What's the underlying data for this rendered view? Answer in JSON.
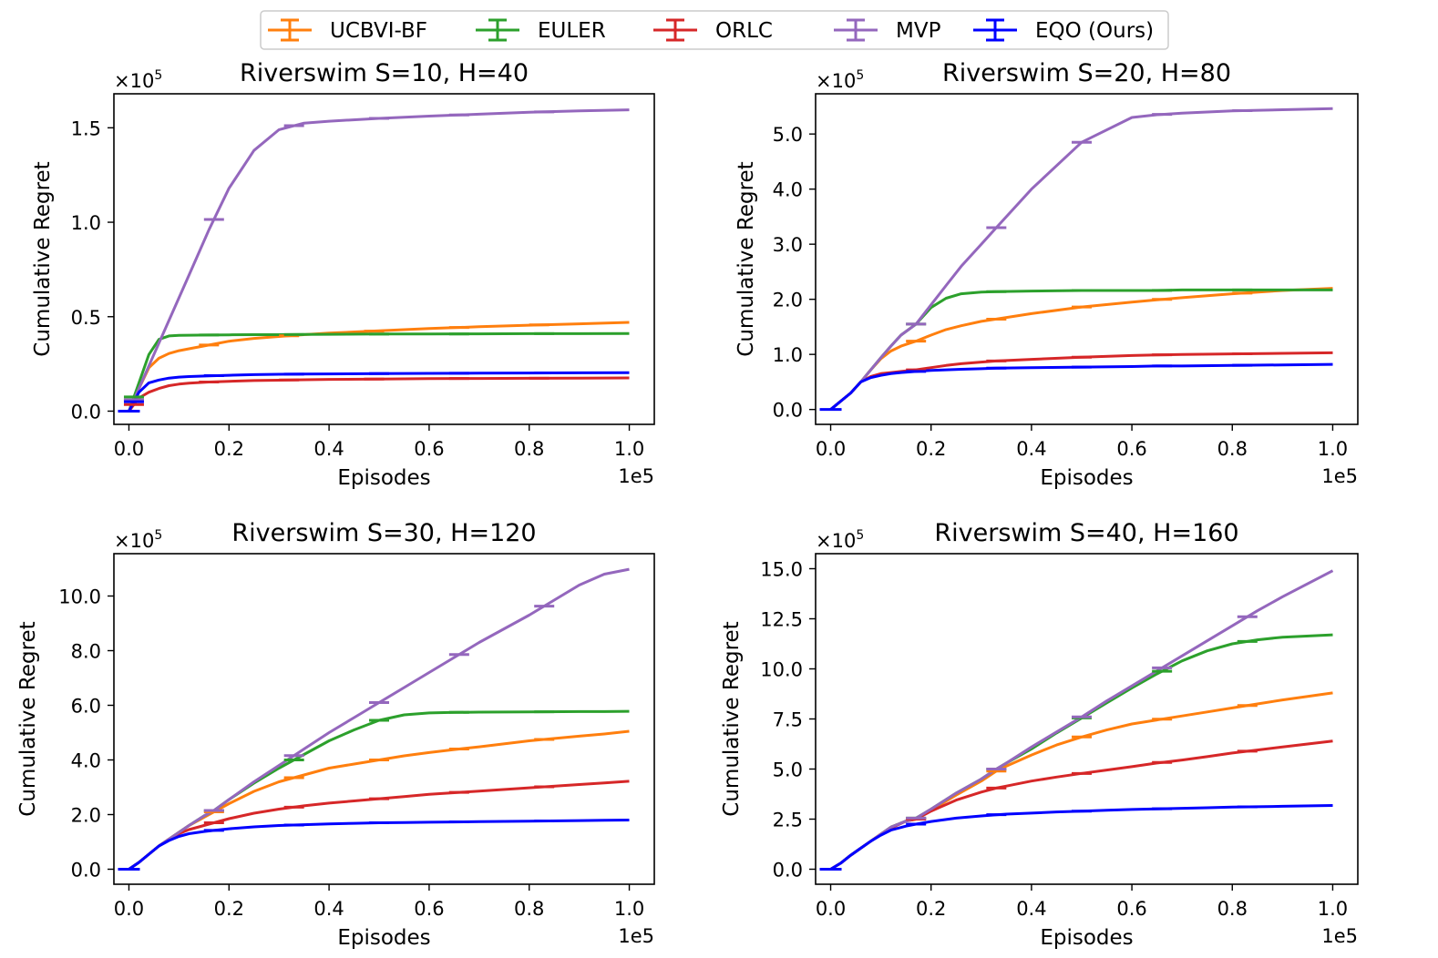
{
  "legend": {
    "entries": [
      {
        "name": "UCBVI-BF",
        "color": "#ff7f0e"
      },
      {
        "name": "EULER",
        "color": "#2ca02c"
      },
      {
        "name": "ORLC",
        "color": "#d62728"
      },
      {
        "name": "MVP",
        "color": "#9467bd"
      },
      {
        "name": "EQO (Ours)",
        "color": "#0000ff"
      }
    ]
  },
  "chart_data": [
    {
      "type": "line",
      "title": "Riverswim S=10, H=40",
      "xlabel": "Episodes",
      "ylabel": "Cumulative Regret",
      "x_offset_label": "1e5",
      "y_multiplier": {
        "base": "×10",
        "exp": "5"
      },
      "xlim": [
        -0.03,
        1.05
      ],
      "ylim": [
        -0.07,
        1.68
      ],
      "xticks": [
        0.0,
        0.2,
        0.4,
        0.6,
        0.8,
        1.0
      ],
      "xtick_labels": [
        "0.0",
        "0.2",
        "0.4",
        "0.6",
        "0.8",
        "1.0"
      ],
      "yticks": [
        0.0,
        0.5,
        1.0,
        1.5
      ],
      "ytick_labels": [
        "0.0",
        "0.5",
        "1.0",
        "1.5"
      ],
      "x": [
        0.0,
        0.02,
        0.04,
        0.06,
        0.08,
        0.1,
        0.12,
        0.16,
        0.2,
        0.25,
        0.3,
        0.35,
        0.4,
        0.5,
        0.6,
        0.7,
        0.8,
        0.9,
        1.0
      ],
      "series": [
        {
          "name": "UCBVI-BF",
          "color": "#ff7f0e",
          "values": [
            0.0,
            0.12,
            0.23,
            0.28,
            0.305,
            0.32,
            0.33,
            0.35,
            0.37,
            0.385,
            0.395,
            0.405,
            0.413,
            0.425,
            0.437,
            0.447,
            0.455,
            0.462,
            0.47
          ],
          "errorbar_x": [
            0.01,
            0.16,
            0.32,
            0.49,
            0.66,
            0.82
          ]
        },
        {
          "name": "EULER",
          "color": "#2ca02c",
          "values": [
            0.0,
            0.15,
            0.3,
            0.38,
            0.398,
            0.401,
            0.402,
            0.403,
            0.404,
            0.405,
            0.405,
            0.406,
            0.407,
            0.408,
            0.408,
            0.409,
            0.41,
            0.41,
            0.411
          ],
          "errorbar_x": [
            0.01,
            0.16,
            0.33,
            0.5,
            0.66,
            0.83
          ]
        },
        {
          "name": "ORLC",
          "color": "#d62728",
          "values": [
            0.0,
            0.07,
            0.1,
            0.12,
            0.135,
            0.143,
            0.148,
            0.154,
            0.158,
            0.162,
            0.164,
            0.166,
            0.168,
            0.17,
            0.172,
            0.173,
            0.174,
            0.175,
            0.176
          ],
          "errorbar_x": [
            0.01,
            0.16,
            0.32,
            0.49,
            0.66,
            0.82
          ]
        },
        {
          "name": "MVP",
          "color": "#9467bd",
          "values": [
            0.0,
            0.12,
            0.24,
            0.36,
            0.48,
            0.6,
            0.72,
            0.96,
            1.18,
            1.38,
            1.49,
            1.525,
            1.535,
            1.55,
            1.562,
            1.572,
            1.582,
            1.59,
            1.595
          ],
          "errorbar_x": [
            0.01,
            0.17,
            0.33,
            0.5,
            0.66,
            0.83
          ]
        },
        {
          "name": "EQO (Ours)",
          "color": "#0000ff",
          "values": [
            0.0,
            0.1,
            0.15,
            0.165,
            0.175,
            0.18,
            0.183,
            0.187,
            0.19,
            0.193,
            0.195,
            0.196,
            0.197,
            0.199,
            0.2,
            0.201,
            0.202,
            0.203,
            0.204
          ],
          "errorbar_x": [
            0.01,
            0.17,
            0.33,
            0.5,
            0.66,
            0.83
          ]
        }
      ]
    },
    {
      "type": "line",
      "title": "Riverswim S=20, H=80",
      "xlabel": "Episodes",
      "ylabel": "Cumulative Regret",
      "x_offset_label": "1e5",
      "y_multiplier": {
        "base": "×10",
        "exp": "5"
      },
      "xlim": [
        -0.03,
        1.05
      ],
      "ylim": [
        -0.27,
        5.73
      ],
      "xticks": [
        0.0,
        0.2,
        0.4,
        0.6,
        0.8,
        1.0
      ],
      "xtick_labels": [
        "0.0",
        "0.2",
        "0.4",
        "0.6",
        "0.8",
        "1.0"
      ],
      "yticks": [
        0.0,
        1.0,
        2.0,
        3.0,
        4.0,
        5.0
      ],
      "ytick_labels": [
        "0.0",
        "1.0",
        "2.0",
        "3.0",
        "4.0",
        "5.0"
      ],
      "x": [
        0.0,
        0.02,
        0.04,
        0.06,
        0.08,
        0.1,
        0.12,
        0.14,
        0.17,
        0.2,
        0.23,
        0.26,
        0.3,
        0.33,
        0.4,
        0.5,
        0.6,
        0.65,
        0.7,
        0.8,
        0.9,
        1.0
      ],
      "series": [
        {
          "name": "UCBVI-BF",
          "color": "#ff7f0e",
          "values": [
            0.0,
            0.15,
            0.3,
            0.5,
            0.72,
            0.92,
            1.06,
            1.15,
            1.24,
            1.35,
            1.45,
            1.52,
            1.6,
            1.64,
            1.74,
            1.86,
            1.95,
            1.99,
            2.03,
            2.1,
            2.16,
            2.2
          ],
          "errorbar_x": [
            0.17,
            0.33,
            0.5,
            0.66,
            0.82
          ]
        },
        {
          "name": "EULER",
          "color": "#2ca02c",
          "values": [
            0.0,
            0.15,
            0.3,
            0.5,
            0.72,
            0.94,
            1.15,
            1.35,
            1.55,
            1.85,
            2.02,
            2.1,
            2.13,
            2.14,
            2.15,
            2.16,
            2.16,
            2.16,
            2.17,
            2.17,
            2.17,
            2.17
          ],
          "errorbar_x": [
            0.17,
            0.33,
            0.5,
            0.66,
            0.82
          ]
        },
        {
          "name": "ORLC",
          "color": "#d62728",
          "values": [
            0.0,
            0.15,
            0.3,
            0.5,
            0.6,
            0.65,
            0.67,
            0.69,
            0.72,
            0.76,
            0.8,
            0.83,
            0.86,
            0.88,
            0.91,
            0.95,
            0.98,
            0.99,
            1.0,
            1.01,
            1.02,
            1.03
          ],
          "errorbar_x": [
            0.17,
            0.33,
            0.5,
            0.66,
            0.82
          ]
        },
        {
          "name": "MVP",
          "color": "#9467bd",
          "values": [
            0.0,
            0.15,
            0.3,
            0.5,
            0.72,
            0.94,
            1.15,
            1.35,
            1.55,
            1.9,
            2.25,
            2.6,
            3.0,
            3.3,
            4.0,
            4.85,
            5.3,
            5.35,
            5.38,
            5.42,
            5.44,
            5.46
          ],
          "errorbar_x": [
            0.17,
            0.33,
            0.5,
            0.66,
            0.82
          ]
        },
        {
          "name": "EQO (Ours)",
          "color": "#0000ff",
          "values": [
            0.0,
            0.15,
            0.3,
            0.5,
            0.58,
            0.62,
            0.65,
            0.67,
            0.69,
            0.71,
            0.72,
            0.73,
            0.74,
            0.75,
            0.76,
            0.77,
            0.78,
            0.79,
            0.79,
            0.8,
            0.81,
            0.82
          ],
          "errorbar_x": [
            0.17,
            0.33,
            0.5,
            0.66,
            0.82
          ]
        }
      ]
    },
    {
      "type": "line",
      "title": "Riverswim S=30, H=120",
      "xlabel": "Episodes",
      "ylabel": "Cumulative Regret",
      "x_offset_label": "1e5",
      "y_multiplier": {
        "base": "×10",
        "exp": "5"
      },
      "xlim": [
        -0.03,
        1.05
      ],
      "ylim": [
        -0.55,
        11.55
      ],
      "xticks": [
        0.0,
        0.2,
        0.4,
        0.6,
        0.8,
        1.0
      ],
      "xtick_labels": [
        "0.0",
        "0.2",
        "0.4",
        "0.6",
        "0.8",
        "1.0"
      ],
      "yticks": [
        0.0,
        2.0,
        4.0,
        6.0,
        8.0,
        10.0
      ],
      "ytick_labels": [
        "0.0",
        "2.0",
        "4.0",
        "6.0",
        "8.0",
        "10.0"
      ],
      "x": [
        0.0,
        0.02,
        0.04,
        0.06,
        0.08,
        0.1,
        0.12,
        0.15,
        0.17,
        0.2,
        0.25,
        0.3,
        0.35,
        0.4,
        0.45,
        0.5,
        0.55,
        0.6,
        0.65,
        0.7,
        0.8,
        0.9,
        0.95,
        1.0
      ],
      "series": [
        {
          "name": "UCBVI-BF",
          "color": "#ff7f0e",
          "values": [
            0.0,
            0.25,
            0.55,
            0.85,
            1.1,
            1.35,
            1.6,
            1.9,
            2.1,
            2.4,
            2.85,
            3.2,
            3.45,
            3.7,
            3.85,
            4.0,
            4.15,
            4.27,
            4.38,
            4.48,
            4.7,
            4.87,
            4.95,
            5.05
          ],
          "errorbar_x": [
            0.17,
            0.33,
            0.5,
            0.66,
            0.83
          ]
        },
        {
          "name": "EULER",
          "color": "#2ca02c",
          "values": [
            0.0,
            0.25,
            0.55,
            0.85,
            1.1,
            1.35,
            1.6,
            1.95,
            2.15,
            2.55,
            3.15,
            3.7,
            4.2,
            4.7,
            5.1,
            5.45,
            5.65,
            5.72,
            5.74,
            5.75,
            5.76,
            5.77,
            5.77,
            5.78
          ],
          "errorbar_x": [
            0.17,
            0.33,
            0.5,
            0.66,
            0.83
          ]
        },
        {
          "name": "ORLC",
          "color": "#d62728",
          "values": [
            0.0,
            0.25,
            0.55,
            0.85,
            1.1,
            1.3,
            1.45,
            1.6,
            1.7,
            1.85,
            2.05,
            2.2,
            2.32,
            2.42,
            2.5,
            2.58,
            2.66,
            2.74,
            2.8,
            2.86,
            2.98,
            3.1,
            3.16,
            3.22
          ],
          "errorbar_x": [
            0.17,
            0.33,
            0.5,
            0.66,
            0.83
          ]
        },
        {
          "name": "MVP",
          "color": "#9467bd",
          "values": [
            0.0,
            0.25,
            0.55,
            0.85,
            1.1,
            1.35,
            1.6,
            1.95,
            2.15,
            2.55,
            3.2,
            3.8,
            4.4,
            5.0,
            5.55,
            6.1,
            6.65,
            7.2,
            7.75,
            8.3,
            9.3,
            10.4,
            10.8,
            10.98
          ],
          "errorbar_x": [
            0.17,
            0.33,
            0.5,
            0.66,
            0.83
          ]
        },
        {
          "name": "EQO (Ours)",
          "color": "#0000ff",
          "values": [
            0.0,
            0.25,
            0.55,
            0.85,
            1.05,
            1.2,
            1.3,
            1.38,
            1.42,
            1.48,
            1.55,
            1.6,
            1.63,
            1.66,
            1.68,
            1.7,
            1.71,
            1.72,
            1.73,
            1.74,
            1.76,
            1.78,
            1.79,
            1.8
          ],
          "errorbar_x": [
            0.17,
            0.33,
            0.5,
            0.66,
            0.83
          ]
        }
      ]
    },
    {
      "type": "line",
      "title": "Riverswim S=40, H=160",
      "xlabel": "Episodes",
      "ylabel": "Cumulative Regret",
      "x_offset_label": "1e5",
      "y_multiplier": {
        "base": "×10",
        "exp": "5"
      },
      "xlim": [
        -0.03,
        1.05
      ],
      "ylim": [
        -0.75,
        15.75
      ],
      "xticks": [
        0.0,
        0.2,
        0.4,
        0.6,
        0.8,
        1.0
      ],
      "xtick_labels": [
        "0.0",
        "0.2",
        "0.4",
        "0.6",
        "0.8",
        "1.0"
      ],
      "yticks": [
        0.0,
        2.5,
        5.0,
        7.5,
        10.0,
        12.5,
        15.0
      ],
      "ytick_labels": [
        "0.0",
        "2.5",
        "5.0",
        "7.5",
        "10.0",
        "12.5",
        "15.0"
      ],
      "x": [
        0.0,
        0.02,
        0.04,
        0.06,
        0.08,
        0.1,
        0.12,
        0.15,
        0.17,
        0.2,
        0.25,
        0.3,
        0.33,
        0.35,
        0.4,
        0.45,
        0.5,
        0.55,
        0.6,
        0.65,
        0.7,
        0.75,
        0.8,
        0.85,
        0.9,
        1.0
      ],
      "series": [
        {
          "name": "UCBVI-BF",
          "color": "#ff7f0e",
          "values": [
            0.0,
            0.3,
            0.7,
            1.05,
            1.4,
            1.75,
            2.1,
            2.4,
            2.5,
            2.95,
            3.7,
            4.4,
            4.9,
            5.15,
            5.7,
            6.2,
            6.6,
            6.95,
            7.25,
            7.45,
            7.65,
            7.85,
            8.05,
            8.25,
            8.45,
            8.8
          ],
          "errorbar_x": [
            0.17,
            0.33,
            0.5,
            0.66,
            0.83
          ]
        },
        {
          "name": "EULER",
          "color": "#2ca02c",
          "values": [
            0.0,
            0.3,
            0.7,
            1.05,
            1.4,
            1.75,
            2.1,
            2.4,
            2.55,
            3.0,
            3.8,
            4.5,
            5.0,
            5.3,
            6.0,
            6.8,
            7.55,
            8.3,
            9.05,
            9.75,
            10.4,
            10.9,
            11.25,
            11.45,
            11.58,
            11.7
          ],
          "errorbar_x": [
            0.17,
            0.33,
            0.5,
            0.66,
            0.83
          ]
        },
        {
          "name": "ORLC",
          "color": "#d62728",
          "values": [
            0.0,
            0.3,
            0.7,
            1.05,
            1.4,
            1.75,
            2.05,
            2.4,
            2.5,
            2.9,
            3.45,
            3.85,
            4.05,
            4.15,
            4.4,
            4.6,
            4.78,
            4.95,
            5.12,
            5.3,
            5.45,
            5.62,
            5.8,
            5.95,
            6.1,
            6.4
          ],
          "errorbar_x": [
            0.17,
            0.33,
            0.5,
            0.66,
            0.83
          ]
        },
        {
          "name": "MVP",
          "color": "#9467bd",
          "values": [
            0.0,
            0.3,
            0.7,
            1.05,
            1.4,
            1.75,
            2.1,
            2.4,
            2.55,
            3.0,
            3.8,
            4.5,
            5.0,
            5.3,
            6.1,
            6.85,
            7.6,
            8.4,
            9.15,
            9.9,
            10.65,
            11.4,
            12.15,
            12.9,
            13.6,
            14.9
          ],
          "errorbar_x": [
            0.17,
            0.33,
            0.5,
            0.66,
            0.83
          ]
        },
        {
          "name": "EQO (Ours)",
          "color": "#0000ff",
          "values": [
            0.0,
            0.3,
            0.7,
            1.05,
            1.4,
            1.7,
            1.95,
            2.15,
            2.25,
            2.38,
            2.55,
            2.66,
            2.72,
            2.75,
            2.8,
            2.86,
            2.9,
            2.94,
            2.98,
            3.01,
            3.04,
            3.07,
            3.1,
            3.12,
            3.14,
            3.18
          ],
          "errorbar_x": [
            0.17,
            0.33,
            0.5,
            0.66,
            0.83
          ]
        }
      ]
    }
  ]
}
